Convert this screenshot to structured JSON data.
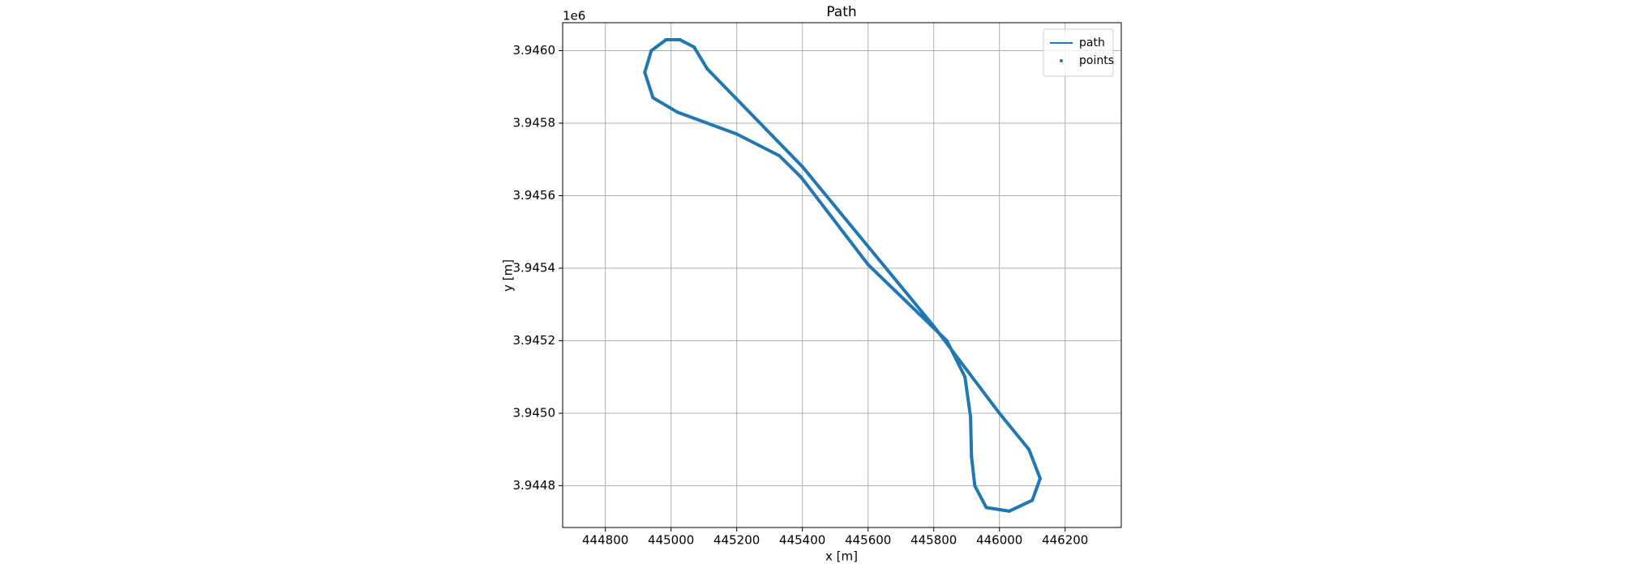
{
  "chart_data": {
    "type": "line",
    "title": "Path",
    "xlabel": "x [m]",
    "ylabel": "y [m]",
    "y_offset_label": "1e6",
    "xlim": [
      444670,
      446371
    ],
    "ylim": [
      3.944685,
      3.946077
    ],
    "xticks": [
      444800,
      445000,
      445200,
      445400,
      445600,
      445800,
      446000,
      446200
    ],
    "yticks": [
      {
        "value": 3.9448,
        "label": "3.9448"
      },
      {
        "value": 3.945,
        "label": "3.9450"
      },
      {
        "value": 3.9452,
        "label": "3.9452"
      },
      {
        "value": 3.9454,
        "label": "3.9454"
      },
      {
        "value": 3.9456,
        "label": "3.9456"
      },
      {
        "value": 3.9458,
        "label": "3.9458"
      },
      {
        "value": 3.946,
        "label": "3.9460"
      }
    ],
    "grid": true,
    "legend": "upper right",
    "series": [
      {
        "name": "path",
        "kind": "line",
        "color": "#1f77b4",
        "x": [
          445027,
          445070,
          445110,
          445400,
          445800,
          446000,
          446090,
          446124,
          446100,
          446030,
          445960,
          445925,
          445915,
          445912,
          445895,
          445840,
          445600,
          445397,
          445330,
          445200,
          445020,
          444945,
          444920,
          444940,
          444985,
          445027
        ],
        "y": [
          3.94603,
          3.94601,
          3.94595,
          3.94568,
          3.94524,
          3.945,
          3.9449,
          3.94482,
          3.94476,
          3.94473,
          3.94474,
          3.9448,
          3.94488,
          3.94499,
          3.9451,
          3.9452,
          3.94541,
          3.94565,
          3.94571,
          3.94577,
          3.94583,
          3.94587,
          3.94594,
          3.946,
          3.94603,
          3.94603
        ]
      },
      {
        "name": "points",
        "kind": "scatter",
        "color": "#1f77b4",
        "x": [
          445027,
          445070,
          445110,
          445400,
          445800,
          446000,
          446090,
          446124,
          446100,
          446030,
          445960,
          445925,
          445915,
          445912,
          445895,
          445840,
          445600,
          445397,
          445330,
          445200,
          445020,
          444945,
          444920,
          444940,
          444985,
          445027
        ],
        "y": [
          3.94603,
          3.94601,
          3.94595,
          3.94568,
          3.94524,
          3.945,
          3.9449,
          3.94482,
          3.94476,
          3.94473,
          3.94474,
          3.9448,
          3.94488,
          3.94499,
          3.9451,
          3.9452,
          3.94541,
          3.94565,
          3.94571,
          3.94577,
          3.94583,
          3.94587,
          3.94594,
          3.946,
          3.94603,
          3.94603
        ]
      }
    ]
  }
}
